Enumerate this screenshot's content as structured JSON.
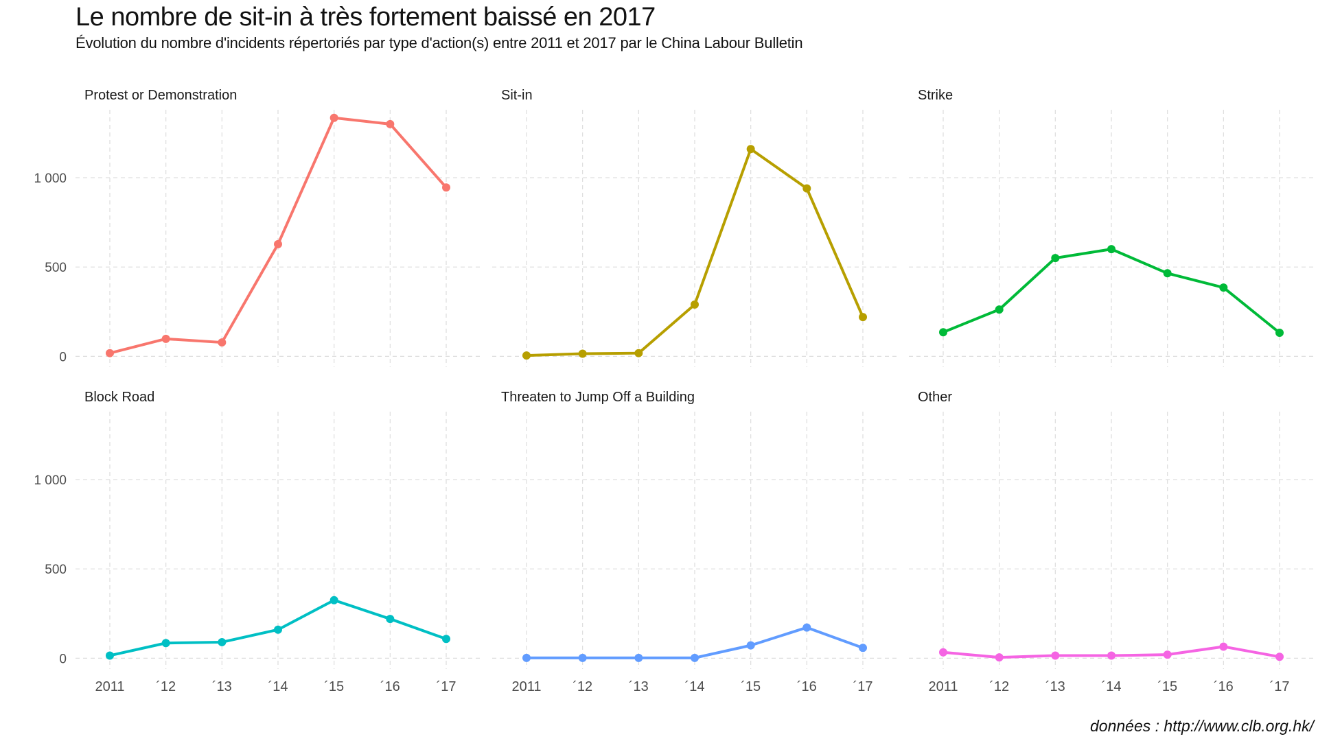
{
  "chart_data": {
    "type": "line",
    "title": "Le nombre de sit-in à très fortement baissé en 2017",
    "subtitle": "Évolution du nombre d'incidents répertoriés par type d'action(s) entre 2011 et 2017 par le China Labour Bulletin",
    "caption": "données : http://www.clb.org.hk/",
    "xlabel": "",
    "ylabel": "",
    "x": [
      2011,
      2012,
      2013,
      2014,
      2015,
      2016,
      2017
    ],
    "x_tick_labels": [
      "2011",
      "´12",
      "´13",
      "´14",
      "´15",
      "´16",
      "´17"
    ],
    "y_ticks": [
      0,
      500,
      1000
    ],
    "y_tick_labels": [
      "0",
      "500",
      "1 000"
    ],
    "ylim": [
      -60,
      1380
    ],
    "grid": true,
    "legend": "none",
    "panels": [
      {
        "name": "Protest or Demonstration",
        "color": "#F8766D",
        "values": [
          18,
          98,
          78,
          628,
          1335,
          1300,
          945
        ]
      },
      {
        "name": "Sit-in",
        "color": "#B79F00",
        "values": [
          5,
          15,
          18,
          290,
          1160,
          940,
          220
        ]
      },
      {
        "name": "Strike",
        "color": "#00BA38",
        "values": [
          135,
          262,
          550,
          600,
          465,
          385,
          132
        ]
      },
      {
        "name": "Block Road",
        "color": "#00BFC4",
        "values": [
          15,
          85,
          90,
          160,
          325,
          220,
          108
        ]
      },
      {
        "name": "Threaten to Jump Off a Building",
        "color": "#619CFF",
        "values": [
          2,
          2,
          2,
          2,
          72,
          172,
          58
        ]
      },
      {
        "name": "Other",
        "color": "#F564E3",
        "values": [
          33,
          5,
          15,
          15,
          20,
          65,
          8
        ]
      }
    ]
  }
}
